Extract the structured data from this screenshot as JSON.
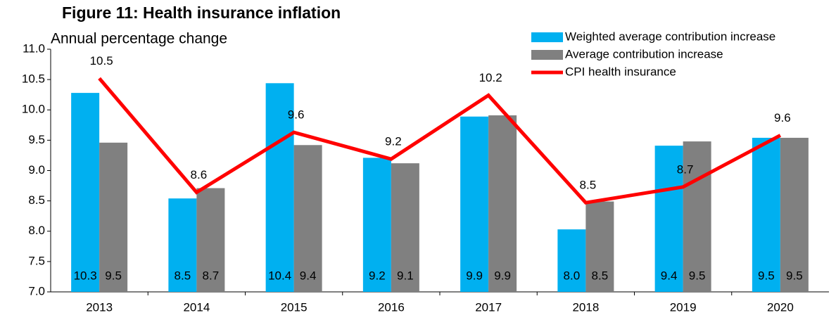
{
  "chart_data": {
    "type": "bar_line",
    "title": "Figure 11: Health insurance inflation",
    "subtitle": "Annual percentage change",
    "categories": [
      "2013",
      "2014",
      "2015",
      "2016",
      "2017",
      "2018",
      "2019",
      "2020"
    ],
    "series": [
      {
        "name": "Weighted average contribution increase",
        "color": "#00b0f0",
        "kind": "bar",
        "values": [
          10.28,
          8.54,
          10.44,
          9.21,
          9.89,
          8.03,
          9.41,
          9.54
        ],
        "value_labels": [
          "10.3",
          "8.5",
          "10.4",
          "9.2",
          "9.9",
          "8.0",
          "9.4",
          "9.5"
        ]
      },
      {
        "name": "Average contribution increase",
        "color": "#808080",
        "kind": "bar",
        "values": [
          9.46,
          8.71,
          9.42,
          9.12,
          9.91,
          8.49,
          9.48,
          9.54
        ],
        "value_labels": [
          "9.5",
          "8.7",
          "9.4",
          "9.1",
          "9.9",
          "8.5",
          "9.5",
          "9.5"
        ]
      },
      {
        "name": "CPI health insurance",
        "color": "#ff0000",
        "kind": "line",
        "values": [
          10.52,
          8.64,
          9.63,
          9.19,
          10.24,
          8.47,
          8.73,
          9.58
        ],
        "value_labels": [
          "10.5",
          "8.6",
          "9.6",
          "9.2",
          "10.2",
          "8.5",
          "8.7",
          "9.6"
        ]
      }
    ],
    "ylim": [
      7,
      11
    ],
    "yticks": [
      {
        "value": 7,
        "label": "7.0"
      },
      7.5,
      {
        "value": 8,
        "label": "8.0"
      },
      8.5,
      {
        "value": 9,
        "label": "9.0"
      },
      9.5,
      {
        "value": 10,
        "label": "10.0"
      },
      10.5,
      {
        "value": 11,
        "label": "11.0"
      }
    ],
    "grid": false,
    "legend": "top-right"
  }
}
